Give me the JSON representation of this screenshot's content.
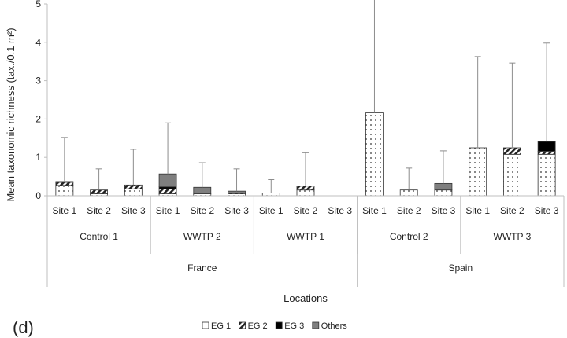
{
  "chart_data": {
    "type": "bar",
    "stacked": true,
    "error_bars": true,
    "panel_label": "(d)",
    "ylabel": "Mean taxonomic richness (tax./0.1 m²)",
    "xlabel": "Locations",
    "ylim": [
      0,
      5
    ],
    "yticks": [
      0,
      1,
      2,
      3,
      4,
      5
    ],
    "grid": false,
    "legend_position": "bottom",
    "colors": {
      "EG1": "#ffffff",
      "EG2": "#ffffff",
      "EG3": "#000000",
      "Others": "#7f7f7f",
      "axis": "#bfbfbf",
      "bar_edge": "#333333"
    },
    "categories": [
      "Site 1",
      "Site 2",
      "Site 3",
      "Site 1",
      "Site 2",
      "Site 3",
      "Site 1",
      "Site 2",
      "Site 3",
      "Site 1",
      "Site 2",
      "Site 3",
      "Site 1",
      "Site 2",
      "Site 3"
    ],
    "groups": [
      {
        "label": "Control 1",
        "span": 3
      },
      {
        "label": "WWTP 2",
        "span": 3
      },
      {
        "label": "WWTP 1",
        "span": 3
      },
      {
        "label": "Control 2",
        "span": 3
      },
      {
        "label": "WWTP 3",
        "span": 3
      }
    ],
    "countries": [
      {
        "label": "France",
        "span": 9
      },
      {
        "label": "Spain",
        "span": 6
      }
    ],
    "series": [
      {
        "name": "EG 1",
        "pattern": "dots",
        "values": [
          0.27,
          0.05,
          0.18,
          0.05,
          0.05,
          0.05,
          0.07,
          0.15,
          0,
          2.16,
          0.15,
          0.15,
          1.25,
          1.08,
          1.08
        ]
      },
      {
        "name": "EG 2",
        "pattern": "hatch",
        "values": [
          0.08,
          0.1,
          0.1,
          0.13,
          0,
          0.02,
          0,
          0.1,
          0,
          0,
          0,
          0,
          0,
          0.17,
          0.08
        ]
      },
      {
        "name": "EG 3",
        "pattern": "solid-black",
        "values": [
          0,
          0,
          0,
          0.05,
          0,
          0,
          0,
          0,
          0,
          0,
          0,
          0,
          0,
          0,
          0.25
        ]
      },
      {
        "name": "Others",
        "pattern": "solid-gray",
        "values": [
          0.02,
          0,
          0,
          0.34,
          0.17,
          0.05,
          0,
          0,
          0,
          0,
          0,
          0.17,
          0,
          0,
          0
        ]
      }
    ],
    "error": [
      1.15,
      0.55,
      0.93,
      1.33,
      0.64,
      0.58,
      0.35,
      0.87,
      0,
      3.5,
      0.57,
      0.85,
      2.38,
      2.21,
      2.57
    ]
  }
}
